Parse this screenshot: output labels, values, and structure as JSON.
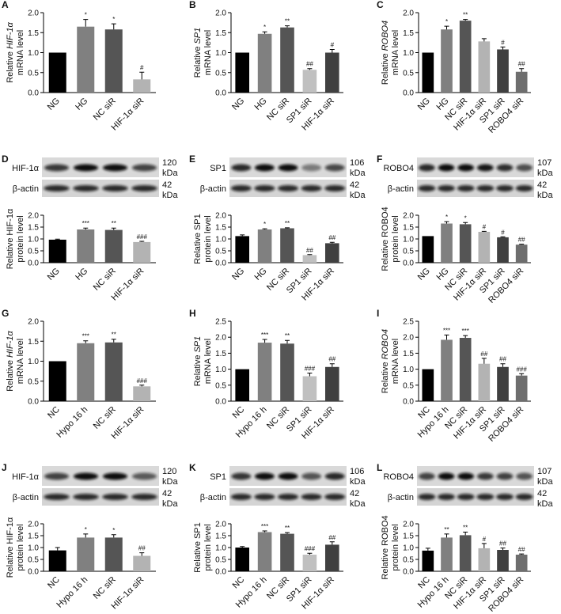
{
  "chart_data": [
    {
      "type": "bar",
      "label": "A",
      "ylabel": [
        "Relative",
        "HIF-1α",
        "mRNA level"
      ],
      "ylabel_italic": [
        false,
        true,
        false
      ],
      "categories": [
        "NG",
        "HG",
        "NC siR",
        "HIF-1α siR"
      ],
      "values": [
        1.0,
        1.65,
        1.58,
        0.33
      ],
      "errors": [
        0,
        0.18,
        0.14,
        0.18
      ],
      "annotations": [
        null,
        "*",
        "*",
        "#"
      ],
      "colors": [
        "#000000",
        "#808080",
        "#555555",
        "#b3b3b3"
      ],
      "ylim": [
        0,
        2
      ],
      "yticks": [
        {
          "value": 0,
          "label": "0.0"
        },
        0.5,
        {
          "value": 1,
          "label": "1.0"
        },
        1.5,
        {
          "value": 2,
          "label": "2.0"
        }
      ]
    },
    {
      "type": "bar",
      "label": "B",
      "ylabel": [
        "Relative",
        "SP1",
        "mRNA level"
      ],
      "ylabel_italic": [
        false,
        true,
        false
      ],
      "categories": [
        "NG",
        "HG",
        "NC siR",
        "SP1 siR",
        "HIF-1α siR"
      ],
      "values": [
        1.0,
        1.47,
        1.63,
        0.57,
        1.0
      ],
      "errors": [
        0,
        0.05,
        0.04,
        0.03,
        0.08
      ],
      "annotations": [
        null,
        "*",
        "**",
        "##",
        "#"
      ],
      "colors": [
        "#000000",
        "#808080",
        "#555555",
        "#c0c0c0",
        "#404040"
      ],
      "ylim": [
        0,
        2
      ],
      "yticks": [
        {
          "value": 0,
          "label": "0.0"
        },
        0.5,
        {
          "value": 1,
          "label": "1.0"
        },
        1.5,
        {
          "value": 2,
          "label": "2.0"
        }
      ]
    },
    {
      "type": "bar",
      "label": "C",
      "ylabel": [
        "Relative",
        "ROBO4",
        "mRNA level"
      ],
      "ylabel_italic": [
        false,
        true,
        false
      ],
      "categories": [
        "NG",
        "HG",
        "NC siR",
        "HIF-1α siR",
        "SP1 siR",
        "ROBO4 siR"
      ],
      "values": [
        1.0,
        1.58,
        1.8,
        1.28,
        1.08,
        0.52
      ],
      "errors": [
        0,
        0.08,
        0.03,
        0.07,
        0.06,
        0.08
      ],
      "annotations": [
        null,
        "*",
        "**",
        null,
        "#",
        "##"
      ],
      "colors": [
        "#000000",
        "#808080",
        "#555555",
        "#b3b3b3",
        "#404040",
        "#6e6e6e"
      ],
      "ylim": [
        0,
        2
      ],
      "yticks": [
        {
          "value": 0,
          "label": "0.0"
        },
        0.5,
        {
          "value": 1,
          "label": "1.0"
        },
        1.5,
        {
          "value": 2,
          "label": "2.0"
        }
      ]
    },
    {
      "type": "bar",
      "label": "D",
      "ylabel": [
        "Relative",
        "HIF-1α",
        "protein level"
      ],
      "ylabel_italic": [
        false,
        false,
        false
      ],
      "blot": {
        "protein": "HIF-1α",
        "control": "β-actin",
        "protein_kda": "120",
        "control_kda": "42",
        "unit": "kDa"
      },
      "categories": [
        "NG",
        "HG",
        "NC siR",
        "HIF-1α siR"
      ],
      "values": [
        0.97,
        1.4,
        1.38,
        0.87
      ],
      "errors": [
        0.02,
        0.06,
        0.08,
        0.03
      ],
      "annotations": [
        null,
        "***",
        "**",
        "###"
      ],
      "colors": [
        "#000000",
        "#808080",
        "#555555",
        "#b3b3b3"
      ],
      "ylim": [
        0,
        2
      ],
      "yticks": [
        {
          "value": 0,
          "label": "0.0"
        },
        0.5,
        {
          "value": 1,
          "label": "1.0"
        },
        1.5,
        {
          "value": 2,
          "label": "2.0"
        }
      ]
    },
    {
      "type": "bar",
      "label": "E",
      "ylabel": [
        "Relative",
        "SP1",
        "protein level"
      ],
      "ylabel_italic": [
        false,
        false,
        false
      ],
      "blot": {
        "protein": "SP1",
        "control": "β-actin",
        "protein_kda": "106",
        "control_kda": "42",
        "unit": "kDa"
      },
      "categories": [
        "NG",
        "HG",
        "NC siR",
        "SP1 siR",
        "HIF-1α siR"
      ],
      "values": [
        1.12,
        1.4,
        1.45,
        0.32,
        0.82
      ],
      "errors": [
        0.05,
        0.03,
        0.02,
        0.02,
        0.04
      ],
      "annotations": [
        null,
        "*",
        "**",
        "##",
        "##"
      ],
      "colors": [
        "#000000",
        "#808080",
        "#555555",
        "#c0c0c0",
        "#404040"
      ],
      "ylim": [
        0,
        2
      ],
      "yticks": [
        {
          "value": 0,
          "label": "0.0"
        },
        0.5,
        {
          "value": 1,
          "label": "1.0"
        },
        1.5,
        {
          "value": 2,
          "label": "2.0"
        }
      ]
    },
    {
      "type": "bar",
      "label": "F",
      "ylabel": [
        "Relative",
        "ROBO4",
        "protein level"
      ],
      "ylabel_italic": [
        false,
        false,
        false
      ],
      "blot": {
        "protein": "ROBO4",
        "control": "β-actin",
        "protein_kda": "107",
        "control_kda": "42",
        "unit": "kDa"
      },
      "categories": [
        "NG",
        "HG",
        "NC siR",
        "HIF-1α siR",
        "SP1 siR",
        "ROBO4 siR"
      ],
      "values": [
        1.12,
        1.65,
        1.62,
        1.3,
        1.07,
        0.76
      ],
      "errors": [
        0,
        0.08,
        0.07,
        0.02,
        0.02,
        0.02
      ],
      "annotations": [
        null,
        "*",
        "*",
        "#",
        "#",
        "##"
      ],
      "colors": [
        "#000000",
        "#808080",
        "#555555",
        "#b3b3b3",
        "#404040",
        "#6e6e6e"
      ],
      "ylim": [
        0,
        2
      ],
      "yticks": [
        {
          "value": 0,
          "label": "0.0"
        },
        0.5,
        {
          "value": 1,
          "label": "1.0"
        },
        1.5,
        {
          "value": 2,
          "label": "2.0"
        }
      ]
    },
    {
      "type": "bar",
      "label": "G",
      "ylabel": [
        "Relative",
        "HIF-1α",
        "mRNA level"
      ],
      "ylabel_italic": [
        false,
        true,
        false
      ],
      "categories": [
        "NC",
        "Hypo 16 h",
        "NC siR",
        "HIF-1α siR"
      ],
      "values": [
        1.0,
        1.45,
        1.47,
        0.37
      ],
      "errors": [
        0,
        0.06,
        0.08,
        0.03
      ],
      "annotations": [
        null,
        "***",
        "**",
        "###"
      ],
      "colors": [
        "#000000",
        "#808080",
        "#555555",
        "#b3b3b3"
      ],
      "ylim": [
        0,
        2
      ],
      "yticks": [
        {
          "value": 0,
          "label": "0.0"
        },
        0.5,
        {
          "value": 1,
          "label": "1.0"
        },
        1.5,
        {
          "value": 2,
          "label": "2.0"
        }
      ]
    },
    {
      "type": "bar",
      "label": "H",
      "ylabel": [
        "Relative",
        "SP1",
        "mRNA level"
      ],
      "ylabel_italic": [
        false,
        true,
        false
      ],
      "categories": [
        "NC",
        "Hypo 16 h",
        "NC siR",
        "SP1 siR",
        "HIF-1α siR"
      ],
      "values": [
        1.0,
        1.83,
        1.8,
        0.78,
        1.07
      ],
      "errors": [
        0,
        0.1,
        0.1,
        0.1,
        0.1
      ],
      "annotations": [
        null,
        "***",
        "**",
        "###",
        "##"
      ],
      "colors": [
        "#000000",
        "#808080",
        "#555555",
        "#c0c0c0",
        "#404040"
      ],
      "ylim": [
        0,
        2.5
      ],
      "yticks": [
        {
          "value": 0,
          "label": "0.0"
        },
        0.5,
        {
          "value": 1,
          "label": "1.0"
        },
        1.5,
        {
          "value": 2,
          "label": "2.0"
        },
        2.5
      ]
    },
    {
      "type": "bar",
      "label": "I",
      "ylabel": [
        "Relative",
        "ROBO4",
        "mRNA level"
      ],
      "ylabel_italic": [
        false,
        true,
        false
      ],
      "categories": [
        "NC",
        "Hypo 16 h",
        "NC siR",
        "HIF-1α siR",
        "SP1 siR",
        "ROBO4 siR"
      ],
      "values": [
        1.0,
        1.92,
        1.98,
        1.17,
        1.07,
        0.8
      ],
      "errors": [
        0,
        0.15,
        0.07,
        0.17,
        0.1,
        0.06
      ],
      "annotations": [
        null,
        "***",
        "***",
        "##",
        "##",
        "###"
      ],
      "colors": [
        "#000000",
        "#808080",
        "#555555",
        "#b3b3b3",
        "#404040",
        "#6e6e6e"
      ],
      "ylim": [
        0,
        2.5
      ],
      "yticks": [
        {
          "value": 0,
          "label": "0.0"
        },
        0.5,
        {
          "value": 1,
          "label": "1.0"
        },
        1.5,
        {
          "value": 2,
          "label": "2.0"
        },
        2.5
      ]
    },
    {
      "type": "bar",
      "label": "J",
      "ylabel": [
        "Relative",
        "HIF-1α",
        "protein level"
      ],
      "ylabel_italic": [
        false,
        false,
        false
      ],
      "blot": {
        "protein": "HIF-1α",
        "control": "β-actin",
        "protein_kda": "120",
        "control_kda": "42",
        "unit": "kDa"
      },
      "categories": [
        "NC",
        "Hypo 16 h",
        "NC siR",
        "HIF-1α siR"
      ],
      "values": [
        0.88,
        1.42,
        1.42,
        0.65
      ],
      "errors": [
        0.12,
        0.15,
        0.12,
        0.13
      ],
      "annotations": [
        null,
        "*",
        "*",
        "##"
      ],
      "colors": [
        "#000000",
        "#808080",
        "#555555",
        "#b3b3b3"
      ],
      "ylim": [
        0,
        2
      ],
      "yticks": [
        {
          "value": 0,
          "label": "0.0"
        },
        0.5,
        {
          "value": 1,
          "label": "1.0"
        },
        1.5,
        {
          "value": 2,
          "label": "2.0"
        }
      ]
    },
    {
      "type": "bar",
      "label": "K",
      "ylabel": [
        "Relative",
        "SP1",
        "protein level"
      ],
      "ylabel_italic": [
        false,
        false,
        false
      ],
      "blot": {
        "protein": "SP1",
        "control": "β-actin",
        "protein_kda": "106",
        "control_kda": "42",
        "unit": "kDa"
      },
      "categories": [
        "NC",
        "Hypo 16 h",
        "NC siR",
        "SP1 siR",
        "HIF-1α siR"
      ],
      "values": [
        1.0,
        1.65,
        1.58,
        0.7,
        1.12
      ],
      "errors": [
        0.04,
        0.05,
        0.05,
        0.06,
        0.12
      ],
      "annotations": [
        null,
        "***",
        "**",
        "###",
        "##"
      ],
      "colors": [
        "#000000",
        "#808080",
        "#555555",
        "#c0c0c0",
        "#404040"
      ],
      "ylim": [
        0,
        2
      ],
      "yticks": [
        {
          "value": 0,
          "label": "0.0"
        },
        0.5,
        {
          "value": 1,
          "label": "1.0"
        },
        1.5,
        {
          "value": 2,
          "label": "2.0"
        }
      ]
    },
    {
      "type": "bar",
      "label": "L",
      "ylabel": [
        "Relative",
        "ROBO4",
        "protein level"
      ],
      "ylabel_italic": [
        false,
        false,
        false
      ],
      "blot": {
        "protein": "ROBO4",
        "control": "β-actin",
        "protein_kda": "107",
        "control_kda": "42",
        "unit": "kDa"
      },
      "categories": [
        "NC",
        "Hypo 16 h",
        "NC siR",
        "HIF-1α siR",
        "SP1 siR",
        "ROBO4 siR"
      ],
      "values": [
        0.87,
        1.42,
        1.52,
        0.97,
        0.9,
        0.7
      ],
      "errors": [
        0.1,
        0.15,
        0.13,
        0.2,
        0.08,
        0.03
      ],
      "annotations": [
        null,
        "**",
        "**",
        "#",
        "##",
        "##"
      ],
      "colors": [
        "#000000",
        "#808080",
        "#555555",
        "#b3b3b3",
        "#404040",
        "#6e6e6e"
      ],
      "ylim": [
        0,
        2
      ],
      "yticks": [
        {
          "value": 0,
          "label": "0.0"
        },
        0.5,
        {
          "value": 1,
          "label": "1.0"
        },
        1.5,
        {
          "value": 2,
          "label": "2.0"
        }
      ]
    }
  ]
}
